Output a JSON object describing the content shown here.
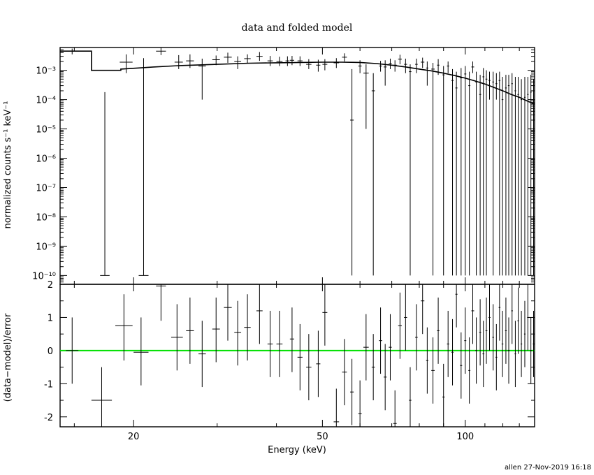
{
  "chart_data": {
    "title": "data and folded model",
    "footer": "allen 27-Nov-2019 16:18",
    "x_axis": {
      "label": "Energy (keV)",
      "scale": "log",
      "range": [
        14,
        140
      ],
      "tick_labels": [
        "20",
        "50",
        "100"
      ]
    },
    "top_panel": {
      "type": "scatter",
      "ylabel": "normalized counts s⁻¹ keV⁻¹",
      "yscale": "log",
      "ylim": [
        5e-11,
        0.006
      ],
      "y_tick_labels": [
        "10⁻³",
        "10⁻⁴",
        "10⁻⁵",
        "10⁻⁶",
        "10⁻⁷",
        "10⁻⁸",
        "10⁻⁹",
        "10⁻¹⁰"
      ],
      "data": [
        [
          14.4,
          15.3,
          0.0045,
          0.0035,
          0.0055
        ],
        [
          17.0,
          17.8,
          1e-10,
          1e-10,
          0.00018
        ],
        [
          18.7,
          19.9,
          0.0019,
          0.0008,
          0.0035
        ],
        [
          20.5,
          21.5,
          1e-10,
          1e-10,
          0.0026
        ],
        [
          22.3,
          23.4,
          0.0045,
          0.0033,
          0.006
        ],
        [
          24.4,
          25.4,
          0.0019,
          0.0011,
          0.0033
        ],
        [
          25.8,
          26.8,
          0.0021,
          0.0012,
          0.0035
        ],
        [
          27.4,
          28.4,
          0.0014,
          0.0001,
          0.0025
        ],
        [
          29.3,
          30.4,
          0.0023,
          0.0015,
          0.0032
        ],
        [
          31.0,
          32.2,
          0.0028,
          0.0018,
          0.004
        ],
        [
          32.6,
          33.7,
          0.002,
          0.0011,
          0.003
        ],
        [
          34.2,
          35.3,
          0.0025,
          0.0017,
          0.0035
        ],
        [
          36.3,
          37.4,
          0.003,
          0.0021,
          0.0042
        ],
        [
          38.3,
          39.3,
          0.0021,
          0.0014,
          0.0031
        ],
        [
          40.0,
          41.2,
          0.002,
          0.0014,
          0.0029
        ],
        [
          41.8,
          42.6,
          0.0021,
          0.0014,
          0.003
        ],
        [
          42.7,
          43.6,
          0.0022,
          0.0015,
          0.0031
        ],
        [
          44.3,
          45.4,
          0.0021,
          0.0014,
          0.003
        ],
        [
          46.2,
          47.4,
          0.0016,
          0.0011,
          0.0024
        ],
        [
          48.5,
          49.5,
          0.0015,
          0.0009,
          0.0023
        ],
        [
          50.0,
          51.2,
          0.0016,
          0.001,
          0.0024
        ],
        [
          52.8,
          54.2,
          0.0018,
          0.0012,
          0.0026
        ],
        [
          55.0,
          56.3,
          0.0028,
          0.002,
          0.0038
        ],
        [
          57.2,
          58.2,
          2e-05,
          1e-10,
          0.0011
        ],
        [
          59.5,
          60.5,
          0.0014,
          0.0008,
          0.0022
        ],
        [
          61.0,
          62.6,
          0.0008,
          1e-05,
          0.0016
        ],
        [
          63.5,
          64.5,
          0.0002,
          1e-10,
          0.0008
        ],
        [
          65.8,
          66.8,
          0.0014,
          0.0009,
          0.0021
        ],
        [
          67.3,
          68.3,
          0.0013,
          0.0003,
          0.0022
        ],
        [
          69.0,
          70.0,
          0.0017,
          0.0011,
          0.0025
        ],
        [
          70.5,
          71.7,
          0.0015,
          0.0009,
          0.0022
        ],
        [
          72.2,
          73.5,
          0.0024,
          0.0016,
          0.0034
        ],
        [
          74.3,
          75.4,
          0.0016,
          0.0008,
          0.0025
        ],
        [
          76.1,
          77.0,
          0.0009,
          1e-10,
          0.0016
        ],
        [
          78.4,
          79.4,
          0.0016,
          0.0008,
          0.0025
        ],
        [
          80.6,
          82.0,
          0.0019,
          0.0012,
          0.0027
        ],
        [
          82.7,
          83.6,
          0.0012,
          0.0003,
          0.002
        ],
        [
          84.8,
          86.2,
          0.0011,
          1e-10,
          0.0018
        ],
        [
          87.2,
          88.2,
          0.0015,
          0.0007,
          0.0024
        ],
        [
          89.5,
          90.5,
          0.0007,
          1e-10,
          0.0014
        ],
        [
          91.5,
          92.5,
          0.0014,
          0.0008,
          0.002
        ],
        [
          93.5,
          94.5,
          0.00045,
          1e-10,
          0.0011
        ],
        [
          95.3,
          96.3,
          0.00025,
          1e-10,
          0.0009
        ],
        [
          97.5,
          98.5,
          0.00055,
          1e-10,
          0.0012
        ],
        [
          99.5,
          100.5,
          0.00075,
          1e-10,
          0.0014
        ],
        [
          101.5,
          102.5,
          0.0003,
          1e-10,
          0.0009
        ],
        [
          103.0,
          104.4,
          0.0013,
          0.0008,
          0.002
        ],
        [
          105.0,
          106.0,
          0.0004,
          1e-10,
          0.0009
        ],
        [
          107.0,
          108.0,
          0.00015,
          1e-10,
          0.0007
        ],
        [
          108.7,
          109.7,
          0.0006,
          1e-10,
          0.0012
        ],
        [
          110.3,
          111.3,
          0.0005,
          1e-10,
          0.001
        ],
        [
          112.0,
          113.0,
          0.00045,
          0.0001,
          0.0009
        ],
        [
          114.0,
          115.0,
          0.0004,
          1e-10,
          0.0009
        ],
        [
          115.8,
          116.8,
          0.00035,
          0.0001,
          0.0008
        ],
        [
          117.6,
          118.6,
          0.00045,
          1e-10,
          0.0009
        ],
        [
          119.3,
          120.3,
          0.0001,
          1e-10,
          0.0006
        ],
        [
          121.3,
          122.3,
          0.00025,
          1e-10,
          0.0007
        ],
        [
          123.0,
          124.0,
          0.0003,
          1e-10,
          0.0007
        ],
        [
          125.0,
          126.0,
          0.00035,
          1e-10,
          0.0008
        ],
        [
          127.0,
          128.0,
          0.0002,
          1e-10,
          0.0006
        ],
        [
          128.8,
          129.8,
          0.00015,
          1e-10,
          0.0006
        ],
        [
          130.8,
          131.8,
          0.0001,
          1e-10,
          0.0005
        ],
        [
          133.0,
          134.0,
          0.00012,
          1e-10,
          0.0006
        ],
        [
          135.0,
          136.0,
          0.00015,
          1e-10,
          0.0006
        ],
        [
          137.0,
          138.0,
          0.00018,
          1e-10,
          0.0007
        ],
        [
          138.8,
          139.8,
          0.0001,
          1e-10,
          0.0005
        ]
      ],
      "model": [
        [
          14.0,
          0.0045
        ],
        [
          16.3,
          0.0045
        ],
        [
          16.3,
          0.001
        ],
        [
          18.8,
          0.001
        ],
        [
          18.8,
          0.0011
        ],
        [
          20.5,
          0.0012
        ],
        [
          22.0,
          0.0013
        ],
        [
          25.0,
          0.00145
        ],
        [
          30.0,
          0.0016
        ],
        [
          35.0,
          0.00175
        ],
        [
          40.0,
          0.0018
        ],
        [
          45.0,
          0.00185
        ],
        [
          50.0,
          0.0019
        ],
        [
          55.0,
          0.0019
        ],
        [
          60.0,
          0.00185
        ],
        [
          65.0,
          0.0017
        ],
        [
          70.0,
          0.0015
        ],
        [
          75.0,
          0.0013
        ],
        [
          80.0,
          0.0011
        ],
        [
          85.0,
          0.00095
        ],
        [
          90.0,
          0.0008
        ],
        [
          95.0,
          0.00066
        ],
        [
          100.0,
          0.00054
        ],
        [
          105.0,
          0.00043
        ],
        [
          110.0,
          0.00034
        ],
        [
          115.0,
          0.00026
        ],
        [
          120.0,
          0.0002
        ],
        [
          125.0,
          0.00015
        ],
        [
          130.0,
          0.00012
        ],
        [
          135.0,
          9e-05
        ],
        [
          140.0,
          7e-05
        ]
      ]
    },
    "bottom_panel": {
      "type": "scatter",
      "ylabel": "(data−model)/error",
      "ylim": [
        -2.3,
        2.0
      ],
      "y_ticks": [
        -2,
        -1,
        0,
        1,
        2
      ],
      "zero_line_color": "#00e000",
      "data": [
        [
          14.4,
          15.3,
          0.0,
          -1.0,
          1.0
        ],
        [
          16.3,
          18.0,
          -1.5,
          -2.3,
          -0.5
        ],
        [
          18.3,
          19.9,
          0.75,
          -0.3,
          1.7
        ],
        [
          20.0,
          21.5,
          -0.05,
          -1.05,
          1.0
        ],
        [
          22.3,
          23.4,
          1.95,
          0.9,
          2.0
        ],
        [
          24.0,
          25.4,
          0.4,
          -0.6,
          1.4
        ],
        [
          25.8,
          26.8,
          0.6,
          -0.4,
          1.6
        ],
        [
          27.4,
          28.4,
          -0.1,
          -1.1,
          0.9
        ],
        [
          29.3,
          30.4,
          0.65,
          -0.35,
          1.6
        ],
        [
          31.0,
          32.2,
          1.3,
          0.3,
          2.0
        ],
        [
          32.6,
          33.7,
          0.55,
          -0.45,
          1.5
        ],
        [
          34.2,
          35.3,
          0.7,
          -0.3,
          1.7
        ],
        [
          36.3,
          37.4,
          1.2,
          0.2,
          2.0
        ],
        [
          38.3,
          39.3,
          0.2,
          -0.8,
          1.2
        ],
        [
          40.0,
          41.2,
          0.2,
          -0.8,
          1.2
        ],
        [
          42.7,
          43.6,
          0.35,
          -0.65,
          1.3
        ],
        [
          44.3,
          45.4,
          -0.2,
          -1.2,
          0.8
        ],
        [
          46.2,
          47.4,
          -0.5,
          -1.5,
          0.5
        ],
        [
          48.5,
          49.5,
          -0.4,
          -1.4,
          0.6
        ],
        [
          50.0,
          51.2,
          1.15,
          0.15,
          2.0
        ],
        [
          52.8,
          54.2,
          -2.15,
          -2.3,
          -1.15
        ],
        [
          55.0,
          56.3,
          -0.65,
          -1.65,
          0.35
        ],
        [
          57.2,
          58.2,
          -1.25,
          -2.25,
          -0.25
        ],
        [
          59.5,
          60.5,
          -1.9,
          -2.3,
          -0.9
        ],
        [
          61.0,
          62.6,
          0.1,
          -0.9,
          1.1
        ],
        [
          63.5,
          64.5,
          -0.5,
          -1.5,
          0.5
        ],
        [
          65.8,
          66.8,
          0.3,
          -0.7,
          1.3
        ],
        [
          67.3,
          68.3,
          -0.8,
          -1.8,
          0.2
        ],
        [
          69.0,
          70.0,
          0.1,
          -0.9,
          1.1
        ],
        [
          70.5,
          71.7,
          -2.2,
          -2.3,
          -1.2
        ],
        [
          72.2,
          73.5,
          0.75,
          -0.25,
          1.75
        ],
        [
          74.3,
          75.4,
          1.0,
          0.0,
          2.0
        ],
        [
          76.1,
          77.0,
          -1.5,
          -2.3,
          -0.5
        ],
        [
          78.4,
          79.4,
          0.4,
          -0.6,
          1.4
        ],
        [
          80.6,
          82.0,
          1.5,
          0.5,
          2.0
        ],
        [
          82.7,
          83.6,
          -0.3,
          -1.3,
          0.7
        ],
        [
          84.8,
          86.2,
          -0.6,
          -1.6,
          0.4
        ],
        [
          87.2,
          88.2,
          0.6,
          -0.4,
          1.6
        ],
        [
          89.5,
          90.5,
          -1.4,
          -2.3,
          -0.4
        ],
        [
          91.5,
          92.5,
          0.2,
          -0.8,
          1.2
        ],
        [
          93.5,
          94.5,
          -0.05,
          -1.05,
          0.95
        ],
        [
          95.3,
          96.3,
          1.7,
          0.7,
          2.0
        ],
        [
          97.5,
          98.5,
          -0.45,
          -1.45,
          0.55
        ],
        [
          99.5,
          100.5,
          0.3,
          -0.7,
          1.3
        ],
        [
          101.5,
          102.5,
          -0.6,
          -1.6,
          0.4
        ],
        [
          103.0,
          104.4,
          1.2,
          0.2,
          2.0
        ],
        [
          105.0,
          106.0,
          0.0,
          -1.0,
          1.0
        ],
        [
          107.0,
          108.0,
          0.55,
          -0.45,
          1.55
        ],
        [
          108.7,
          109.7,
          -0.1,
          -1.1,
          0.9
        ],
        [
          110.3,
          111.3,
          0.6,
          -0.4,
          1.6
        ],
        [
          112.0,
          113.0,
          1.0,
          0.0,
          2.0
        ],
        [
          114.0,
          115.0,
          0.4,
          -0.6,
          1.4
        ],
        [
          115.8,
          116.8,
          -0.2,
          -1.2,
          0.8
        ],
        [
          117.6,
          118.6,
          1.3,
          0.3,
          2.0
        ],
        [
          119.3,
          120.3,
          0.2,
          -0.8,
          1.2
        ],
        [
          121.3,
          122.3,
          0.6,
          -0.4,
          1.6
        ],
        [
          123.0,
          124.0,
          0.0,
          -1.0,
          1.0
        ],
        [
          125.0,
          126.0,
          1.2,
          0.2,
          2.0
        ],
        [
          127.0,
          128.0,
          -0.1,
          -1.1,
          0.9
        ],
        [
          128.8,
          129.8,
          0.9,
          -0.1,
          1.9
        ],
        [
          130.8,
          131.8,
          0.2,
          -0.8,
          1.2
        ],
        [
          133.0,
          134.0,
          0.5,
          -0.5,
          1.5
        ],
        [
          135.0,
          136.0,
          1.0,
          0.0,
          2.0
        ],
        [
          137.0,
          138.0,
          0.0,
          -1.0,
          1.0
        ],
        [
          138.8,
          139.8,
          0.2,
          -0.8,
          1.2
        ]
      ]
    }
  }
}
